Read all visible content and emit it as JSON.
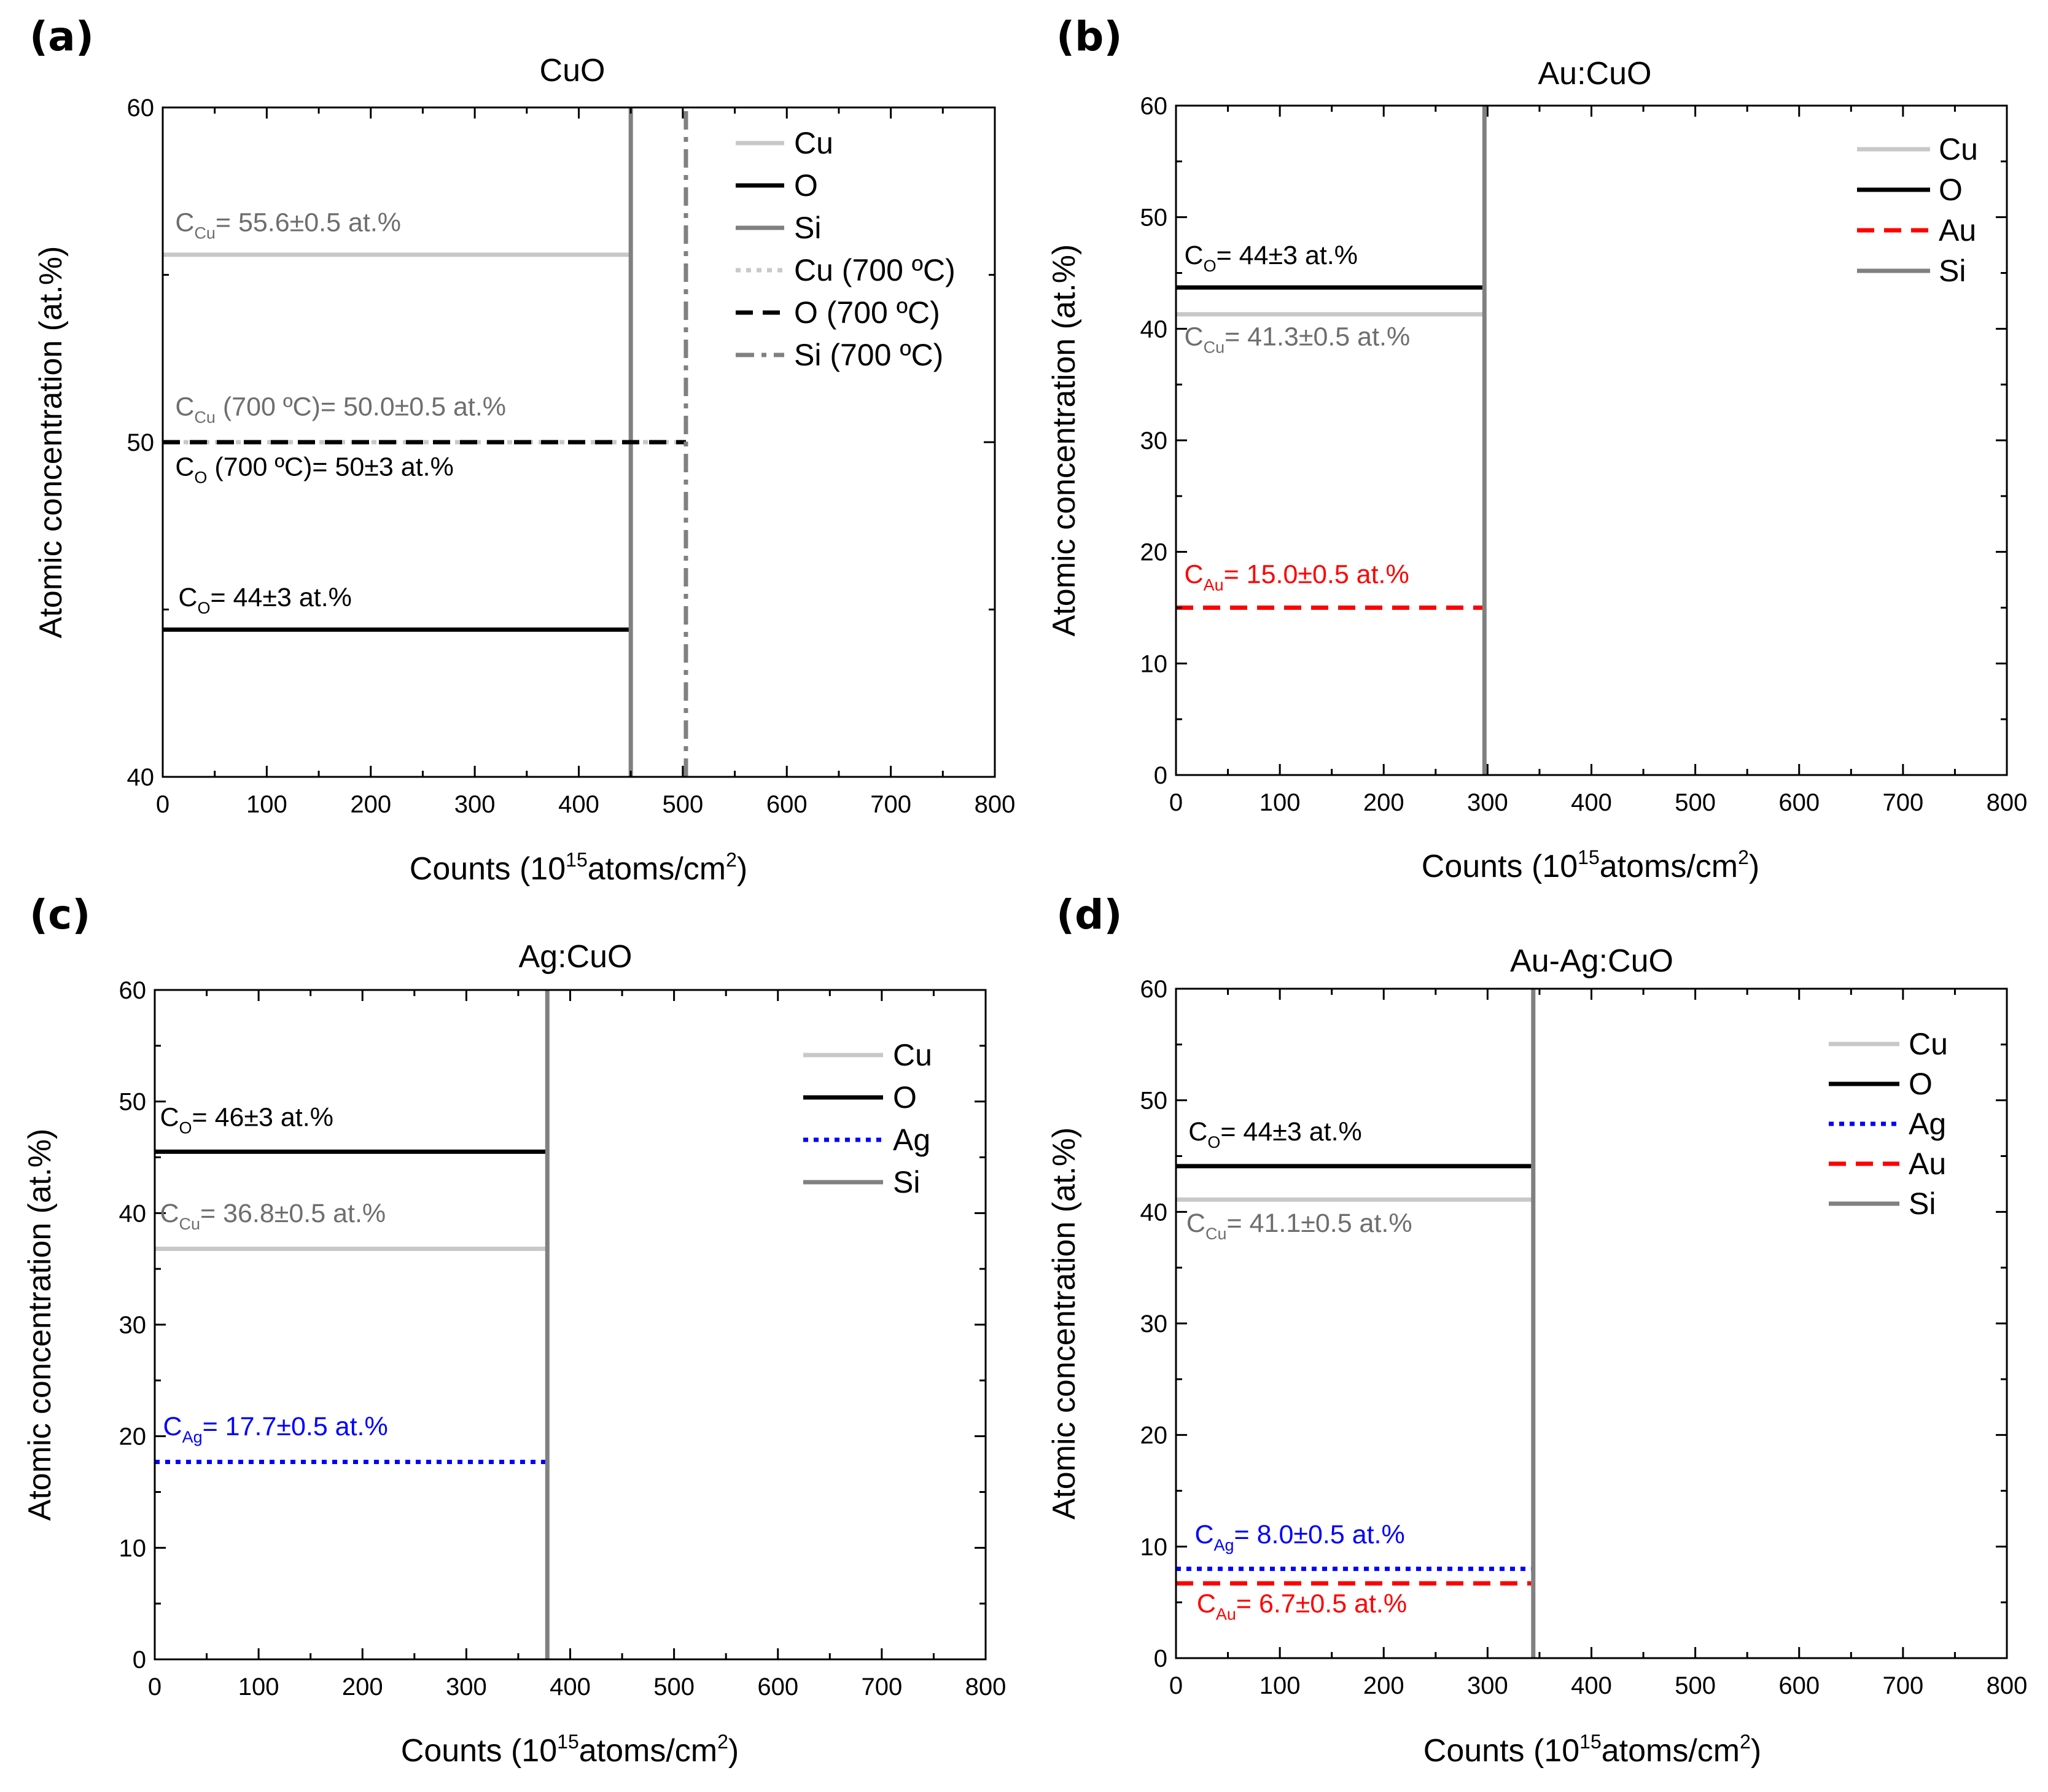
{
  "colors": {
    "Cu": "#c8c8c8",
    "O": "#000000",
    "Si": "#808080",
    "Au": "#ff0000",
    "Ag": "#0000ff",
    "Cu_700": "#c8c8c8",
    "O_700": "#000000",
    "Si_700": "#808080"
  },
  "chart_data": [
    {
      "panel_label": "(a)",
      "type": "line",
      "title": "CuO",
      "xlabel": "Counts (10<sup>15</sup>atoms/cm<sup>2</sup>)",
      "ylabel": "Atomic concentration (at.%)",
      "xlim": [
        0,
        800
      ],
      "ylim": [
        40,
        60
      ],
      "xticks": [
        0,
        100,
        200,
        300,
        400,
        500,
        600,
        700,
        800
      ],
      "yticks": [
        40,
        50,
        60
      ],
      "legend_position": "top-right",
      "series": [
        {
          "name": "Cu",
          "key": "Cu",
          "style": "solid",
          "kind": "h",
          "y": 55.6,
          "x": [
            0,
            450
          ]
        },
        {
          "name": "O",
          "key": "O",
          "style": "solid",
          "kind": "h",
          "y": 44.4,
          "x": [
            0,
            450
          ]
        },
        {
          "name": "Si",
          "key": "Si",
          "style": "solid",
          "kind": "v",
          "x": 450,
          "y": [
            40,
            60
          ]
        },
        {
          "name": "Cu (700 ºC)",
          "key": "Cu_700",
          "style": "dot",
          "kind": "h",
          "y": 50.0,
          "x": [
            0,
            503
          ]
        },
        {
          "name": "O (700 ºC)",
          "key": "O_700",
          "style": "dash",
          "kind": "h",
          "y": 50.0,
          "x": [
            0,
            503
          ]
        },
        {
          "name": "Si (700 ºC)",
          "key": "Si_700",
          "style": "dashdot",
          "kind": "v",
          "x": 503,
          "y": [
            40,
            60
          ]
        }
      ],
      "annotations": [
        {
          "text": "C<sub>Cu</sub>= 55.6±0.5 at.%",
          "x": 12,
          "y": 56.3,
          "key": "Si"
        },
        {
          "text": "C<sub>Cu</sub> (700 ºC)= 50.0±0.5 at.%",
          "x": 12,
          "y": 50.8,
          "key": "Si"
        },
        {
          "text": "C<sub>O</sub> (700 ºC)= 50±3 at.%",
          "x": 12,
          "y": 49.0,
          "key": "O"
        },
        {
          "text": "C<sub>O</sub>= 44±3 at.%",
          "x": 15,
          "y": 45.1,
          "key": "O"
        }
      ]
    },
    {
      "panel_label": "(b)",
      "type": "line",
      "title": "Au:CuO",
      "xlabel": "Counts (10<sup>15</sup>atoms/cm<sup>2</sup>)",
      "ylabel": "Atomic concentration (at.%)",
      "xlim": [
        0,
        800
      ],
      "ylim": [
        0,
        60
      ],
      "xticks": [
        0,
        100,
        200,
        300,
        400,
        500,
        600,
        700,
        800
      ],
      "yticks": [
        0,
        10,
        20,
        30,
        40,
        50,
        60
      ],
      "legend_position": "top-right",
      "series": [
        {
          "name": "Cu",
          "key": "Cu",
          "style": "solid",
          "kind": "h",
          "y": 41.3,
          "x": [
            0,
            295
          ]
        },
        {
          "name": "O",
          "key": "O",
          "style": "solid",
          "kind": "h",
          "y": 43.7,
          "x": [
            0,
            295
          ]
        },
        {
          "name": "Au",
          "key": "Au",
          "style": "dash",
          "kind": "h",
          "y": 15.0,
          "x": [
            0,
            295
          ]
        },
        {
          "name": "Si",
          "key": "Si",
          "style": "solid",
          "kind": "v",
          "x": 297,
          "y": [
            0,
            60
          ]
        }
      ],
      "annotations": [
        {
          "text": "C<sub>O</sub>= 44±3 at.%",
          "x": 8,
          "y": 45.8,
          "key": "O"
        },
        {
          "text": "C<sub>Cu</sub>= 41.3±0.5 at.%",
          "x": 8,
          "y": 38.5,
          "key": "Si"
        },
        {
          "text": "C<sub>Au</sub>= 15.0±0.5 at.%",
          "x": 8,
          "y": 17.2,
          "key": "Au"
        }
      ]
    },
    {
      "panel_label": "(c)",
      "type": "line",
      "title": "Ag:CuO",
      "xlabel": "Counts (10<sup>15</sup>atoms/cm<sup>2</sup>)",
      "ylabel": "Atomic concentration (at.%)",
      "xlim": [
        0,
        800
      ],
      "ylim": [
        0,
        60
      ],
      "xticks": [
        0,
        100,
        200,
        300,
        400,
        500,
        600,
        700,
        800
      ],
      "yticks": [
        0,
        10,
        20,
        30,
        40,
        50,
        60
      ],
      "legend_position": "top-right",
      "series": [
        {
          "name": "Cu",
          "key": "Cu",
          "style": "solid",
          "kind": "h",
          "y": 36.8,
          "x": [
            0,
            378
          ]
        },
        {
          "name": "O",
          "key": "O",
          "style": "solid",
          "kind": "h",
          "y": 45.5,
          "x": [
            0,
            378
          ]
        },
        {
          "name": "Ag",
          "key": "Ag",
          "style": "dot",
          "kind": "h",
          "y": 17.7,
          "x": [
            0,
            378
          ]
        },
        {
          "name": "Si",
          "key": "Si",
          "style": "solid",
          "kind": "v",
          "x": 378,
          "y": [
            0,
            60
          ]
        }
      ],
      "annotations": [
        {
          "text": "C<sub>O</sub>= 46±3 at.%",
          "x": 5,
          "y": 47.8,
          "key": "O"
        },
        {
          "text": "C<sub>Cu</sub>= 36.8±0.5 at.%",
          "x": 5,
          "y": 39.2,
          "key": "Si"
        },
        {
          "text": "C<sub>Ag</sub>= 17.7±0.5 at.%",
          "x": 8,
          "y": 20.1,
          "key": "Ag"
        }
      ]
    },
    {
      "panel_label": "(d)",
      "type": "line",
      "title": "Au-Ag:CuO",
      "xlabel": "Counts (10<sup>15</sup>atoms/cm<sup>2</sup>)",
      "ylabel": "Atomic concentration (at.%)",
      "xlim": [
        0,
        800
      ],
      "ylim": [
        0,
        60
      ],
      "xticks": [
        0,
        100,
        200,
        300,
        400,
        500,
        600,
        700,
        800
      ],
      "yticks": [
        0,
        10,
        20,
        30,
        40,
        50,
        60
      ],
      "legend_position": "top-right",
      "series": [
        {
          "name": "Cu",
          "key": "Cu",
          "style": "solid",
          "kind": "h",
          "y": 41.1,
          "x": [
            0,
            342
          ]
        },
        {
          "name": "O",
          "key": "O",
          "style": "solid",
          "kind": "h",
          "y": 44.1,
          "x": [
            0,
            342
          ]
        },
        {
          "name": "Ag",
          "key": "Ag",
          "style": "dot",
          "kind": "h",
          "y": 8.0,
          "x": [
            0,
            342
          ]
        },
        {
          "name": "Au",
          "key": "Au",
          "style": "dash",
          "kind": "h",
          "y": 6.7,
          "x": [
            0,
            342
          ]
        },
        {
          "name": "Si",
          "key": "Si",
          "style": "solid",
          "kind": "v",
          "x": 344,
          "y": [
            0,
            60
          ]
        }
      ],
      "annotations": [
        {
          "text": "C<sub>O</sub>= 44±3 at.%",
          "x": 12,
          "y": 46.4,
          "key": "O"
        },
        {
          "text": "C<sub>Cu</sub>= 41.1±0.5 at.%",
          "x": 10,
          "y": 38.2,
          "key": "Si"
        },
        {
          "text": "C<sub>Ag</sub>= 8.0±0.5 at.%",
          "x": 18,
          "y": 10.3,
          "key": "Ag"
        },
        {
          "text": "C<sub>Au</sub>= 6.7±0.5 at.%",
          "x": 20,
          "y": 4.1,
          "key": "Au"
        }
      ]
    }
  ]
}
